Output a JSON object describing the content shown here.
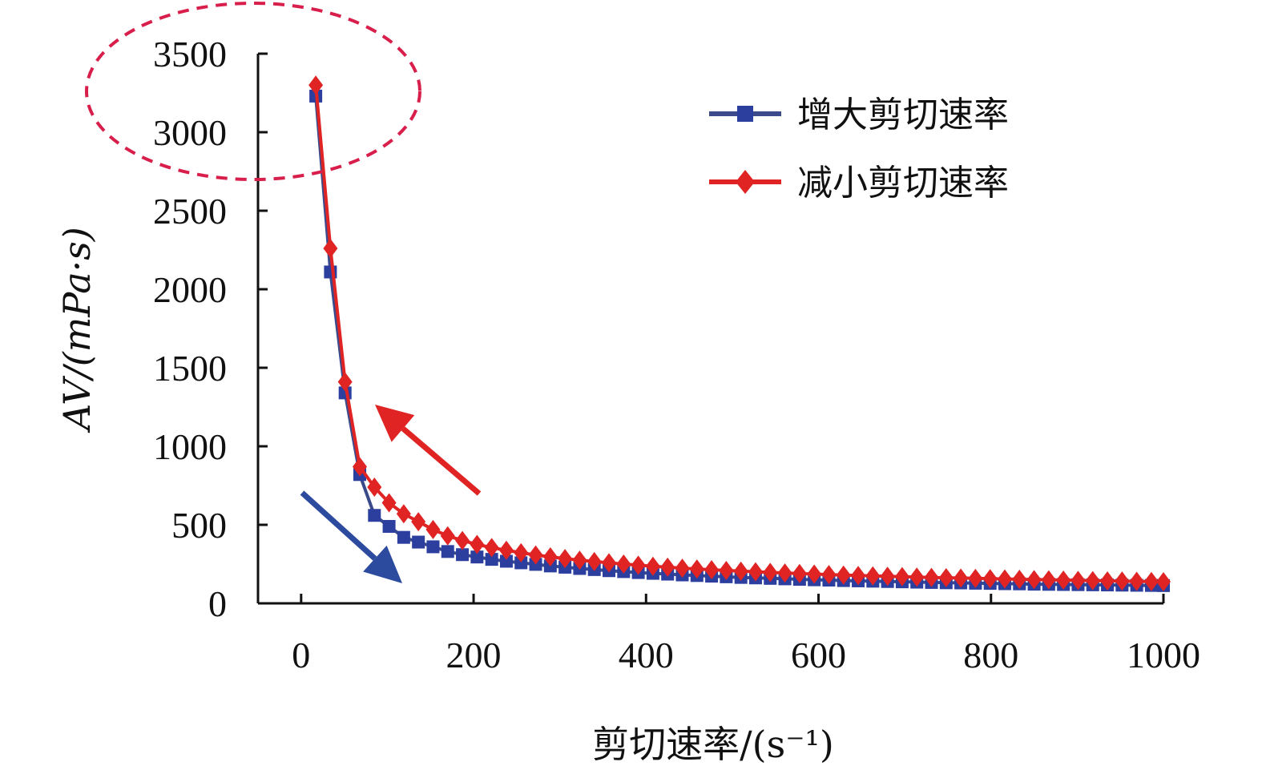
{
  "chart_data": {
    "type": "line",
    "title": "",
    "xlabel": "剪切速率/(s⁻¹)",
    "ylabel": "AV/(mPa·s)",
    "xlim": [
      -50,
      1000
    ],
    "ylim": [
      0,
      3500
    ],
    "x_ticks": [
      "0",
      "200",
      "400",
      "600",
      "800",
      "1000"
    ],
    "y_ticks": [
      "0",
      "500",
      "1000",
      "1500",
      "2000",
      "2500",
      "3000",
      "3500"
    ],
    "legend_position": "top-right",
    "grid": false,
    "series": [
      {
        "name": "增大剪切速率",
        "color": "#2c3f9e",
        "marker": "square",
        "x": [
          17,
          34,
          51,
          68,
          85,
          102,
          119,
          136,
          153,
          170,
          187,
          204,
          221,
          238,
          255,
          272,
          289,
          306,
          323,
          340,
          357,
          374,
          391,
          408,
          425,
          442,
          459,
          476,
          493,
          510,
          527,
          544,
          561,
          578,
          595,
          612,
          629,
          646,
          663,
          680,
          697,
          714,
          731,
          748,
          765,
          782,
          799,
          816,
          833,
          850,
          867,
          884,
          901,
          918,
          935,
          952,
          969,
          986,
          1000
        ],
        "y": [
          3230,
          2110,
          1340,
          820,
          560,
          490,
          420,
          390,
          360,
          330,
          310,
          295,
          280,
          268,
          258,
          248,
          238,
          230,
          222,
          215,
          208,
          202,
          196,
          191,
          186,
          181,
          177,
          173,
          169,
          165,
          162,
          159,
          156,
          153,
          150,
          148,
          145,
          143,
          141,
          139,
          137,
          135,
          133,
          131,
          130,
          128,
          127,
          125,
          124,
          122,
          121,
          120,
          119,
          118,
          117,
          116,
          115,
          114,
          113
        ]
      },
      {
        "name": "减小剪切速率",
        "color": "#e02424",
        "marker": "diamond",
        "x": [
          17,
          34,
          51,
          68,
          85,
          102,
          119,
          136,
          153,
          170,
          187,
          204,
          221,
          238,
          255,
          272,
          289,
          306,
          323,
          340,
          357,
          374,
          391,
          408,
          425,
          442,
          459,
          476,
          493,
          510,
          527,
          544,
          561,
          578,
          595,
          612,
          629,
          646,
          663,
          680,
          697,
          714,
          731,
          748,
          765,
          782,
          799,
          816,
          833,
          850,
          867,
          884,
          901,
          918,
          935,
          952,
          969,
          986,
          1000
        ],
        "y": [
          3300,
          2260,
          1410,
          870,
          740,
          640,
          570,
          520,
          470,
          430,
          400,
          375,
          355,
          338,
          322,
          308,
          296,
          285,
          275,
          266,
          258,
          250,
          243,
          236,
          230,
          224,
          219,
          214,
          209,
          205,
          201,
          197,
          193,
          190,
          186,
          183,
          180,
          177,
          175,
          172,
          170,
          167,
          165,
          163,
          161,
          159,
          157,
          155,
          153,
          151,
          150,
          148,
          146,
          145,
          143,
          142,
          140,
          139,
          138
        ]
      }
    ]
  },
  "annotations": {
    "ellipse_color": "#d81e4a",
    "arrow_increase_color": "#2c4a9e",
    "arrow_decrease_color": "#e02424"
  }
}
